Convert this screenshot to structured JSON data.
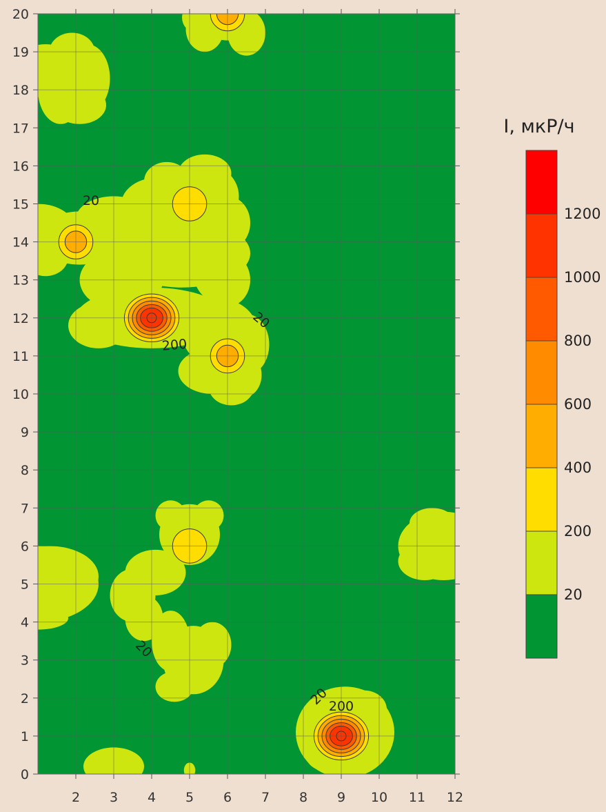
{
  "chart_data": {
    "type": "heatmap",
    "title": "",
    "xlabel": "",
    "ylabel": "",
    "xlim": [
      1,
      12
    ],
    "ylim": [
      0,
      20
    ],
    "x_ticks": [
      2,
      3,
      4,
      5,
      6,
      7,
      8,
      9,
      10,
      11,
      12
    ],
    "y_ticks": [
      0,
      1,
      2,
      3,
      4,
      5,
      6,
      7,
      8,
      9,
      10,
      11,
      12,
      13,
      14,
      15,
      16,
      17,
      18,
      19,
      20
    ],
    "grid": true,
    "background_color": "#029534",
    "hotspots": [
      {
        "x": 4,
        "y": 12,
        "peak_value": 1100
      },
      {
        "x": 9,
        "y": 1,
        "peak_value": 1100
      },
      {
        "x": 2,
        "y": 14,
        "peak_value": 500
      },
      {
        "x": 6,
        "y": 11,
        "peak_value": 500
      },
      {
        "x": 5,
        "y": 15,
        "peak_value": 300
      },
      {
        "x": 6,
        "y": 20,
        "peak_value": 500
      },
      {
        "x": 5,
        "y": 6,
        "peak_value": 300
      }
    ],
    "contour_labels": [
      {
        "text": "20",
        "x": 2.4,
        "y": 15.1,
        "angle": 0
      },
      {
        "text": "200",
        "x": 4.6,
        "y": 11.3,
        "angle": -5
      },
      {
        "text": "20",
        "x": 6.9,
        "y": 11.95,
        "angle": 40
      },
      {
        "text": "20",
        "x": 3.8,
        "y": 3.3,
        "angle": 45
      },
      {
        "text": "20",
        "x": 8.4,
        "y": 2.05,
        "angle": -45
      },
      {
        "text": "200",
        "x": 9.0,
        "y": 1.8,
        "angle": 0
      }
    ],
    "legend": {
      "title": "I, мкР/ч",
      "placement": "right",
      "levels": [
        {
          "label": "",
          "color": "#ff0000"
        },
        {
          "label": "1200",
          "color": "#ff3300"
        },
        {
          "label": "1000",
          "color": "#ff5a00"
        },
        {
          "label": "800",
          "color": "#ff8c00"
        },
        {
          "label": "600",
          "color": "#ffae00"
        },
        {
          "label": "400",
          "color": "#ffdd00"
        },
        {
          "label": "200",
          "color": "#cde60f"
        },
        {
          "label": "20",
          "color": "#029534"
        }
      ]
    }
  }
}
